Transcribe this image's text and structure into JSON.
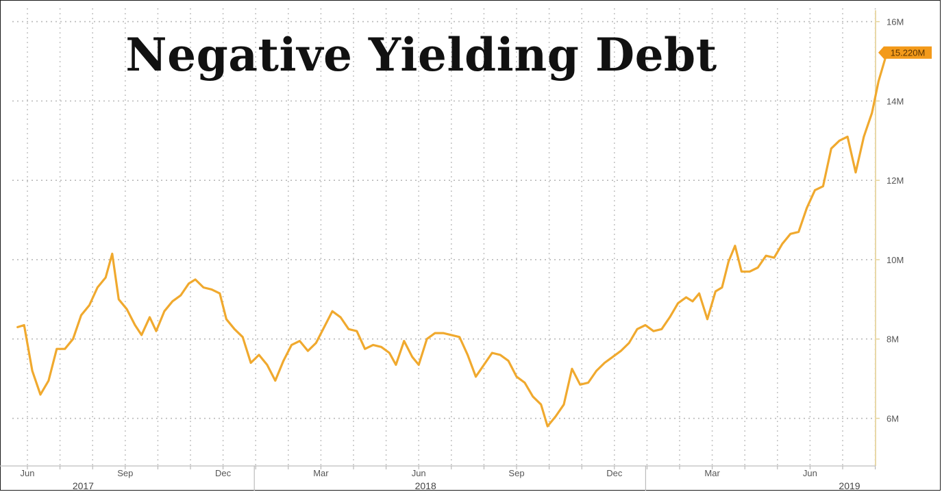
{
  "chart_data": {
    "type": "line",
    "title": "Negative Yielding Debt",
    "xlabel": "",
    "ylabel": "",
    "ylim": [
      4.8,
      16.2
    ],
    "y_ticks": [
      "6M",
      "8M",
      "10M",
      "12M",
      "14M",
      "16M"
    ],
    "y_tick_values": [
      6,
      8,
      10,
      12,
      14,
      16
    ],
    "x_tick_labels": [
      "Jun",
      "Sep",
      "Dec",
      "Mar",
      "Jun",
      "Sep",
      "Dec",
      "Mar",
      "Jun"
    ],
    "x_tick_months": [
      0,
      3,
      6,
      9,
      12,
      15,
      18,
      21,
      24
    ],
    "year_labels": [
      {
        "label": "2017",
        "month": 1.5
      },
      {
        "label": "2018",
        "month": 12
      },
      {
        "label": "2019",
        "month": 25
      }
    ],
    "year_separators": [
      7,
      19
    ],
    "last_value_label": "15.220M",
    "last_value": 15.22,
    "grid": true,
    "line_color": "#f0a92e",
    "label_bg": "#f39a1a",
    "series": [
      {
        "name": "",
        "points": [
          [
            -0.3,
            8.3
          ],
          [
            -0.1,
            8.35
          ],
          [
            0.15,
            7.2
          ],
          [
            0.4,
            6.6
          ],
          [
            0.65,
            6.95
          ],
          [
            0.9,
            7.75
          ],
          [
            1.15,
            7.75
          ],
          [
            1.4,
            8.0
          ],
          [
            1.65,
            8.6
          ],
          [
            1.9,
            8.85
          ],
          [
            2.15,
            9.3
          ],
          [
            2.4,
            9.55
          ],
          [
            2.6,
            10.15
          ],
          [
            2.8,
            9.0
          ],
          [
            3.05,
            8.75
          ],
          [
            3.3,
            8.35
          ],
          [
            3.5,
            8.1
          ],
          [
            3.75,
            8.55
          ],
          [
            3.95,
            8.2
          ],
          [
            4.2,
            8.7
          ],
          [
            4.45,
            8.95
          ],
          [
            4.7,
            9.1
          ],
          [
            4.95,
            9.4
          ],
          [
            5.15,
            9.5
          ],
          [
            5.4,
            9.3
          ],
          [
            5.65,
            9.25
          ],
          [
            5.9,
            9.15
          ],
          [
            6.1,
            8.5
          ],
          [
            6.35,
            8.25
          ],
          [
            6.6,
            8.05
          ],
          [
            6.85,
            7.4
          ],
          [
            7.1,
            7.6
          ],
          [
            7.35,
            7.35
          ],
          [
            7.6,
            6.95
          ],
          [
            7.85,
            7.45
          ],
          [
            8.1,
            7.85
          ],
          [
            8.35,
            7.95
          ],
          [
            8.6,
            7.7
          ],
          [
            8.85,
            7.9
          ],
          [
            9.1,
            8.3
          ],
          [
            9.35,
            8.7
          ],
          [
            9.6,
            8.55
          ],
          [
            9.85,
            8.25
          ],
          [
            10.1,
            8.2
          ],
          [
            10.35,
            7.75
          ],
          [
            10.6,
            7.85
          ],
          [
            10.85,
            7.8
          ],
          [
            11.1,
            7.65
          ],
          [
            11.3,
            7.35
          ],
          [
            11.55,
            7.95
          ],
          [
            11.8,
            7.55
          ],
          [
            12.0,
            7.35
          ],
          [
            12.25,
            8.0
          ],
          [
            12.5,
            8.15
          ],
          [
            12.75,
            8.15
          ],
          [
            13.0,
            8.1
          ],
          [
            13.25,
            8.05
          ],
          [
            13.5,
            7.6
          ],
          [
            13.75,
            7.05
          ],
          [
            14.0,
            7.35
          ],
          [
            14.25,
            7.65
          ],
          [
            14.5,
            7.6
          ],
          [
            14.75,
            7.45
          ],
          [
            15.0,
            7.05
          ],
          [
            15.25,
            6.9
          ],
          [
            15.5,
            6.55
          ],
          [
            15.75,
            6.35
          ],
          [
            15.95,
            5.8
          ],
          [
            16.2,
            6.05
          ],
          [
            16.45,
            6.35
          ],
          [
            16.7,
            7.25
          ],
          [
            16.95,
            6.85
          ],
          [
            17.2,
            6.9
          ],
          [
            17.45,
            7.2
          ],
          [
            17.7,
            7.4
          ],
          [
            17.95,
            7.55
          ],
          [
            18.2,
            7.7
          ],
          [
            18.45,
            7.9
          ],
          [
            18.7,
            8.25
          ],
          [
            18.95,
            8.35
          ],
          [
            19.2,
            8.2
          ],
          [
            19.45,
            8.25
          ],
          [
            19.7,
            8.55
          ],
          [
            19.95,
            8.9
          ],
          [
            20.2,
            9.05
          ],
          [
            20.4,
            8.95
          ],
          [
            20.6,
            9.15
          ],
          [
            20.85,
            8.5
          ],
          [
            21.1,
            9.2
          ],
          [
            21.3,
            9.3
          ],
          [
            21.5,
            9.95
          ],
          [
            21.7,
            10.35
          ],
          [
            21.9,
            9.7
          ],
          [
            22.15,
            9.7
          ],
          [
            22.4,
            9.8
          ],
          [
            22.65,
            10.1
          ],
          [
            22.9,
            10.05
          ],
          [
            23.15,
            10.4
          ],
          [
            23.4,
            10.65
          ],
          [
            23.65,
            10.7
          ],
          [
            23.9,
            11.3
          ],
          [
            24.15,
            11.75
          ],
          [
            24.4,
            11.85
          ],
          [
            24.65,
            12.8
          ],
          [
            24.9,
            13.0
          ],
          [
            25.15,
            13.1
          ],
          [
            25.4,
            12.2
          ],
          [
            25.65,
            13.1
          ],
          [
            25.9,
            13.7
          ],
          [
            26.1,
            14.5
          ],
          [
            26.35,
            15.2
          ]
        ]
      }
    ]
  }
}
